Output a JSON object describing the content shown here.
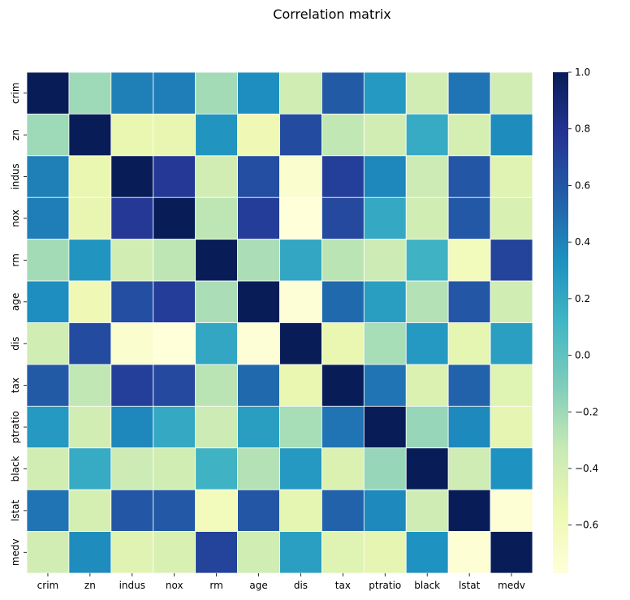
{
  "chart_data": {
    "type": "heatmap",
    "title": "Correlation matrix",
    "variables": [
      "crim",
      "zn",
      "indus",
      "nox",
      "rm",
      "age",
      "dis",
      "tax",
      "ptratio",
      "black",
      "lstat",
      "medv"
    ],
    "matrix": [
      [
        1.0,
        -0.2,
        0.41,
        0.42,
        -0.22,
        0.35,
        -0.38,
        0.58,
        0.29,
        -0.39,
        0.46,
        -0.39
      ],
      [
        -0.2,
        1.0,
        -0.53,
        -0.52,
        0.31,
        -0.57,
        0.66,
        -0.31,
        -0.39,
        0.18,
        -0.41,
        0.36
      ],
      [
        0.41,
        -0.53,
        1.0,
        0.76,
        -0.39,
        0.64,
        -0.71,
        0.72,
        0.38,
        -0.36,
        0.6,
        -0.48
      ],
      [
        0.42,
        -0.52,
        0.76,
        1.0,
        -0.3,
        0.73,
        -0.77,
        0.67,
        0.19,
        -0.38,
        0.59,
        -0.43
      ],
      [
        -0.22,
        0.31,
        -0.39,
        -0.3,
        1.0,
        -0.24,
        0.21,
        -0.29,
        -0.36,
        0.13,
        -0.61,
        0.7
      ],
      [
        0.35,
        -0.57,
        0.64,
        0.73,
        -0.24,
        1.0,
        -0.75,
        0.51,
        0.26,
        -0.27,
        0.6,
        -0.38
      ],
      [
        -0.38,
        0.66,
        -0.71,
        -0.77,
        0.21,
        -0.75,
        1.0,
        -0.53,
        -0.23,
        0.29,
        -0.5,
        0.25
      ],
      [
        0.58,
        -0.31,
        0.72,
        0.67,
        -0.29,
        0.51,
        -0.53,
        1.0,
        0.46,
        -0.44,
        0.54,
        -0.47
      ],
      [
        0.29,
        -0.39,
        0.38,
        0.19,
        -0.36,
        0.26,
        -0.23,
        0.46,
        1.0,
        -0.18,
        0.37,
        -0.51
      ],
      [
        -0.39,
        0.18,
        -0.36,
        -0.38,
        0.13,
        -0.27,
        0.29,
        -0.44,
        -0.18,
        1.0,
        -0.37,
        0.33
      ],
      [
        0.46,
        -0.41,
        0.6,
        0.59,
        -0.61,
        0.6,
        -0.5,
        0.54,
        0.37,
        -0.37,
        1.0,
        -0.74
      ],
      [
        -0.39,
        0.36,
        -0.48,
        -0.43,
        0.7,
        -0.38,
        0.25,
        -0.47,
        -0.51,
        0.33,
        -0.74,
        1.0
      ]
    ],
    "colormap": "YlGnBu",
    "vmin": -0.77,
    "vmax": 1.0,
    "colorbar_ticks": [
      1.0,
      0.8,
      0.6,
      0.4,
      0.2,
      0.0,
      -0.2,
      -0.4,
      -0.6
    ],
    "colorbar_tick_labels": [
      "1.0",
      "0.8",
      "0.6",
      "0.4",
      "0.2",
      "0.0",
      "−0.2",
      "−0.4",
      "−0.6"
    ],
    "grid_lines": true,
    "legend": "colorbar-right"
  },
  "colors": {
    "colormap_stops": [
      "#ffffd9",
      "#edf8b1",
      "#c7e9b4",
      "#7fcdbb",
      "#41b6c4",
      "#1d91c0",
      "#225ea8",
      "#253494",
      "#081d58"
    ],
    "cell_border": "#ffffff",
    "text": "#000000"
  }
}
